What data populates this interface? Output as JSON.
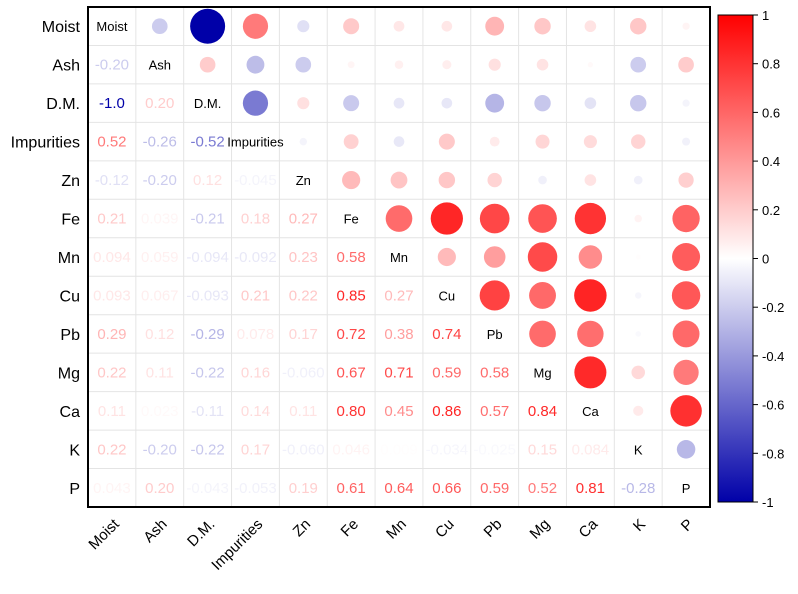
{
  "chart_data": {
    "type": "heatmap",
    "subtype": "correlation-matrix",
    "title": "",
    "variables": [
      "Moist",
      "Ash",
      "D.M.",
      "Impurities",
      "Zn",
      "Fe",
      "Mn",
      "Cu",
      "Pb",
      "Mg",
      "Ca",
      "K",
      "P"
    ],
    "lower_labels": [
      [],
      [
        "-0.20"
      ],
      [
        "-1.0",
        "0.20"
      ],
      [
        "0.52",
        "-0.26",
        "-0.52"
      ],
      [
        "-0.12",
        "-0.20",
        "0.12",
        "-0.045"
      ],
      [
        "0.21",
        "0.039",
        "-0.21",
        "0.18",
        "0.27"
      ],
      [
        "0.094",
        "0.059",
        "-0.094",
        "-0.092",
        "0.23",
        "0.58"
      ],
      [
        "0.093",
        "0.067",
        "-0.093",
        "0.21",
        "0.22",
        "0.85",
        "0.27"
      ],
      [
        "0.29",
        "0.12",
        "-0.29",
        "0.078",
        "0.17",
        "0.72",
        "0.38",
        "0.74"
      ],
      [
        "0.22",
        "0.11",
        "-0.22",
        "0.16",
        "-0.060",
        "0.67",
        "0.71",
        "0.59",
        "0.58"
      ],
      [
        "0.11",
        "0.023",
        "-0.11",
        "0.14",
        "0.11",
        "0.80",
        "0.45",
        "0.86",
        "0.57",
        "0.84"
      ],
      [
        "0.22",
        "-0.20",
        "-0.22",
        "0.17",
        "-0.060",
        "0.046",
        "0.009",
        "-0.034",
        "-0.025",
        "0.15",
        "0.084"
      ],
      [
        "0.043",
        "0.20",
        "-0.043",
        "-0.053",
        "0.19",
        "0.61",
        "0.64",
        "0.66",
        "0.59",
        "0.52",
        "0.81",
        "-0.28"
      ]
    ],
    "colorbar": {
      "range": [
        -1,
        1
      ],
      "ticks": [
        {
          "value": 1,
          "label": "1"
        },
        {
          "value": 0.8,
          "label": "0.8"
        },
        {
          "value": 0.6,
          "label": "0.6"
        },
        {
          "value": 0.4,
          "label": "0.4"
        },
        {
          "value": 0.2,
          "label": "0.2"
        },
        {
          "value": 0,
          "label": "0"
        },
        {
          "value": -0.2,
          "label": "-0.2"
        },
        {
          "value": -0.4,
          "label": "-0.4"
        },
        {
          "value": -0.6,
          "label": "-0.6"
        },
        {
          "value": -0.8,
          "label": "-0.8"
        },
        {
          "value": -1,
          "label": "-1"
        }
      ],
      "low_color": "#0000A8",
      "mid_color": "#FFFFFF",
      "high_color": "#FF0000"
    },
    "upper_display": "circles",
    "lower_display": "numbers",
    "diagonal_display": "variable-names"
  }
}
